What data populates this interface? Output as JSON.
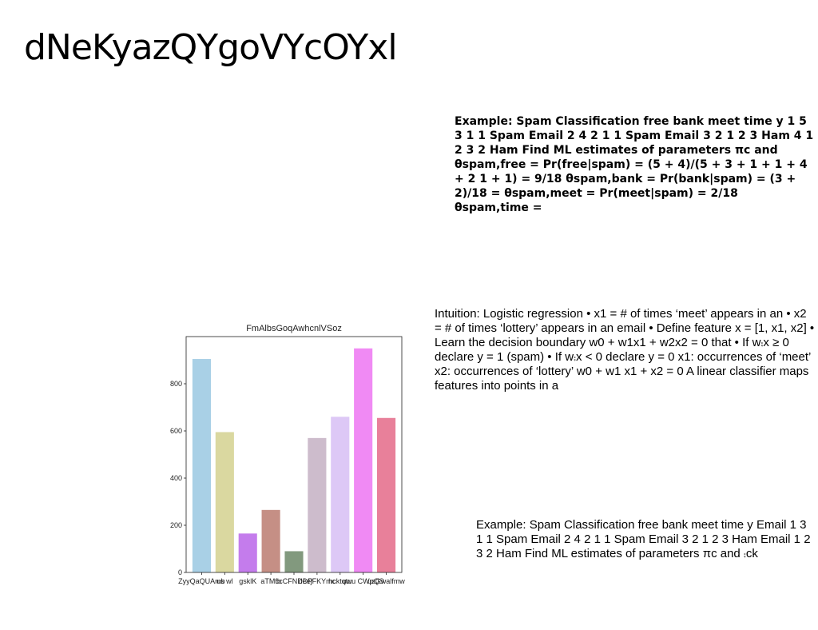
{
  "slide": {
    "title": "dNeKyazQYgoVYcOYxl",
    "bold_paragraph": "Example: Spam Classification free bank meet time y 1 5 3 1 1 Spam Email 2 4 2 1 1 Spam Email 3 2 1 2 3 Ham 4 1 2 3 2 Ham Find ML estimates of parameters πc and θspam,free = Pr(free|spam) = (5 + 4)/(5 + 3 + 1 + 1 + 4 + 2 1 + 1) = 9/18 θspam,bank = Pr(bank|spam) = (3 + 2)/18 = θspam,meet = Pr(meet|spam) = 2/18 θspam,time =",
    "intuition_paragraph": "Intuition: Logistic regression • x1 = # of times ‘meet’ appears in an • x2 = # of times ‘lottery’ appears in an email • Define feature x = [1, x1, x2] • Learn the decision boundary w0 + w1x1 + w2x2 = 0 that • If w⨾x ≥ 0 declare y = 1 (spam) • If w⨾x < 0 declare y = 0 x1: occurrences of ‘meet’ x2: occurrences of ‘lottery’ w0 + w1 x1 + x2 = 0 A linear classifier maps features into points in a",
    "example_paragraph": "Example: Spam Classification free bank meet time y Email 1 3 1 1 Spam Email 2 4 2 1 1 Spam Email 3 2 1 2 3 Ham Email 1 2 3 2 Ham Find ML estimates of parameters πc and ⨾ck"
  },
  "chart_data": {
    "type": "bar",
    "title": "FmAlbsGoqAwhcnlVSoz",
    "categories": [
      "ZyyQaQUAmb",
      "us wl",
      "gsklK",
      "aTMfb",
      "ccCFNDDP",
      "deejFKYmc",
      "hcktqtu",
      "uwu CWpQS",
      "uzGwalfmw"
    ],
    "values": [
      905,
      595,
      165,
      265,
      90,
      570,
      660,
      950,
      655
    ],
    "colors": [
      "#a9d0e6",
      "#dad8a0",
      "#c47cec",
      "#c58f85",
      "#82997e",
      "#cdbccc",
      "#ddc8f6",
      "#f08af4",
      "#e8809a"
    ],
    "ylim": [
      0,
      1000
    ],
    "yticks": [
      0,
      200,
      400,
      600,
      800
    ],
    "xlabel": "",
    "ylabel": "",
    "grid": false
  }
}
